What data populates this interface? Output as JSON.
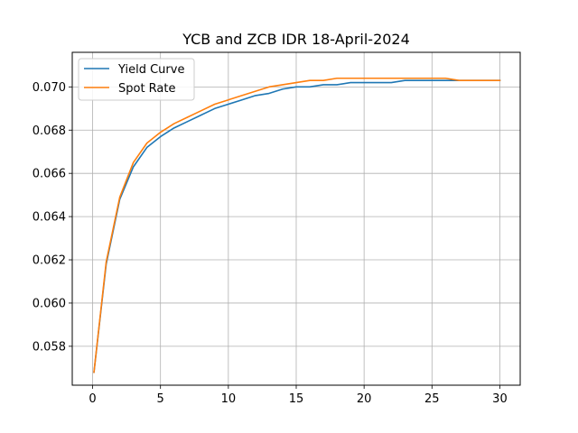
{
  "chart_data": {
    "type": "line",
    "title": "YCB and ZCB IDR 18-April-2024",
    "xlabel": "",
    "ylabel": "",
    "xlim": [
      -1.5,
      31.5
    ],
    "ylim": [
      0.0562,
      0.0716
    ],
    "x_ticks": [
      0,
      5,
      10,
      15,
      20,
      25,
      30
    ],
    "x_tick_labels": [
      "0",
      "5",
      "10",
      "15",
      "20",
      "25",
      "30"
    ],
    "y_ticks": [
      0.058,
      0.06,
      0.062,
      0.064,
      0.066,
      0.068,
      0.07
    ],
    "y_tick_labels": [
      "0.058",
      "0.060",
      "0.062",
      "0.064",
      "0.066",
      "0.068",
      "0.070"
    ],
    "grid": true,
    "legend_position": "top-left",
    "x": [
      0.1,
      1,
      2,
      3,
      4,
      5,
      6,
      7,
      8,
      9,
      10,
      11,
      12,
      13,
      14,
      15,
      16,
      17,
      18,
      19,
      20,
      21,
      22,
      23,
      24,
      25,
      26,
      27,
      28,
      29,
      30
    ],
    "series": [
      {
        "name": "Yield Curve",
        "color": "#1f77b4",
        "values": [
          0.0568,
          0.0618,
          0.0648,
          0.0663,
          0.0672,
          0.0677,
          0.0681,
          0.0684,
          0.0687,
          0.069,
          0.0692,
          0.0694,
          0.0696,
          0.0697,
          0.0699,
          0.07,
          0.07,
          0.0701,
          0.0701,
          0.0702,
          0.0702,
          0.0702,
          0.0702,
          0.0703,
          0.0703,
          0.0703,
          0.0703,
          0.0703,
          0.0703,
          0.0703,
          0.0703
        ]
      },
      {
        "name": "Spot Rate",
        "color": "#ff7f0e",
        "values": [
          0.0568,
          0.0619,
          0.0649,
          0.0665,
          0.0674,
          0.0679,
          0.0683,
          0.0686,
          0.0689,
          0.0692,
          0.0694,
          0.0696,
          0.0698,
          0.07,
          0.0701,
          0.0702,
          0.0703,
          0.0703,
          0.0704,
          0.0704,
          0.0704,
          0.0704,
          0.0704,
          0.0704,
          0.0704,
          0.0704,
          0.0704,
          0.0703,
          0.0703,
          0.0703,
          0.0703
        ]
      }
    ]
  }
}
